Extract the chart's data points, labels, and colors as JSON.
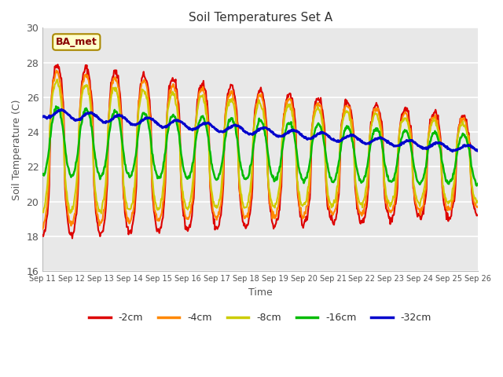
{
  "title": "Soil Temperatures Set A",
  "xlabel": "Time",
  "ylabel": "Soil Temperature (C)",
  "ylim": [
    16,
    30
  ],
  "xlim": [
    0,
    15
  ],
  "annotation": "BA_met",
  "series_colors": {
    "-2cm": "#dd0000",
    "-4cm": "#ff8800",
    "-8cm": "#cccc00",
    "-16cm": "#00bb00",
    "-32cm": "#0000cc"
  },
  "series_lw": {
    "-2cm": 1.5,
    "-4cm": 1.5,
    "-8cm": 1.5,
    "-16cm": 1.8,
    "-32cm": 2.2
  },
  "xtick_labels": [
    "Sep 11",
    "Sep 12",
    "Sep 13",
    "Sep 14",
    "Sep 15",
    "Sep 16",
    "Sep 17",
    "Sep 18",
    "Sep 19",
    "Sep 20",
    "Sep 21",
    "Sep 22",
    "Sep 23",
    "Sep 24",
    "Sep 25",
    "Sep 26"
  ],
  "ytick_values": [
    16,
    18,
    20,
    22,
    24,
    26,
    28,
    30
  ],
  "bg_color": "#e8e8e8",
  "grid_color": "#ffffff",
  "title_color": "#333333",
  "label_color": "#555555",
  "fig_bg": "#ffffff"
}
